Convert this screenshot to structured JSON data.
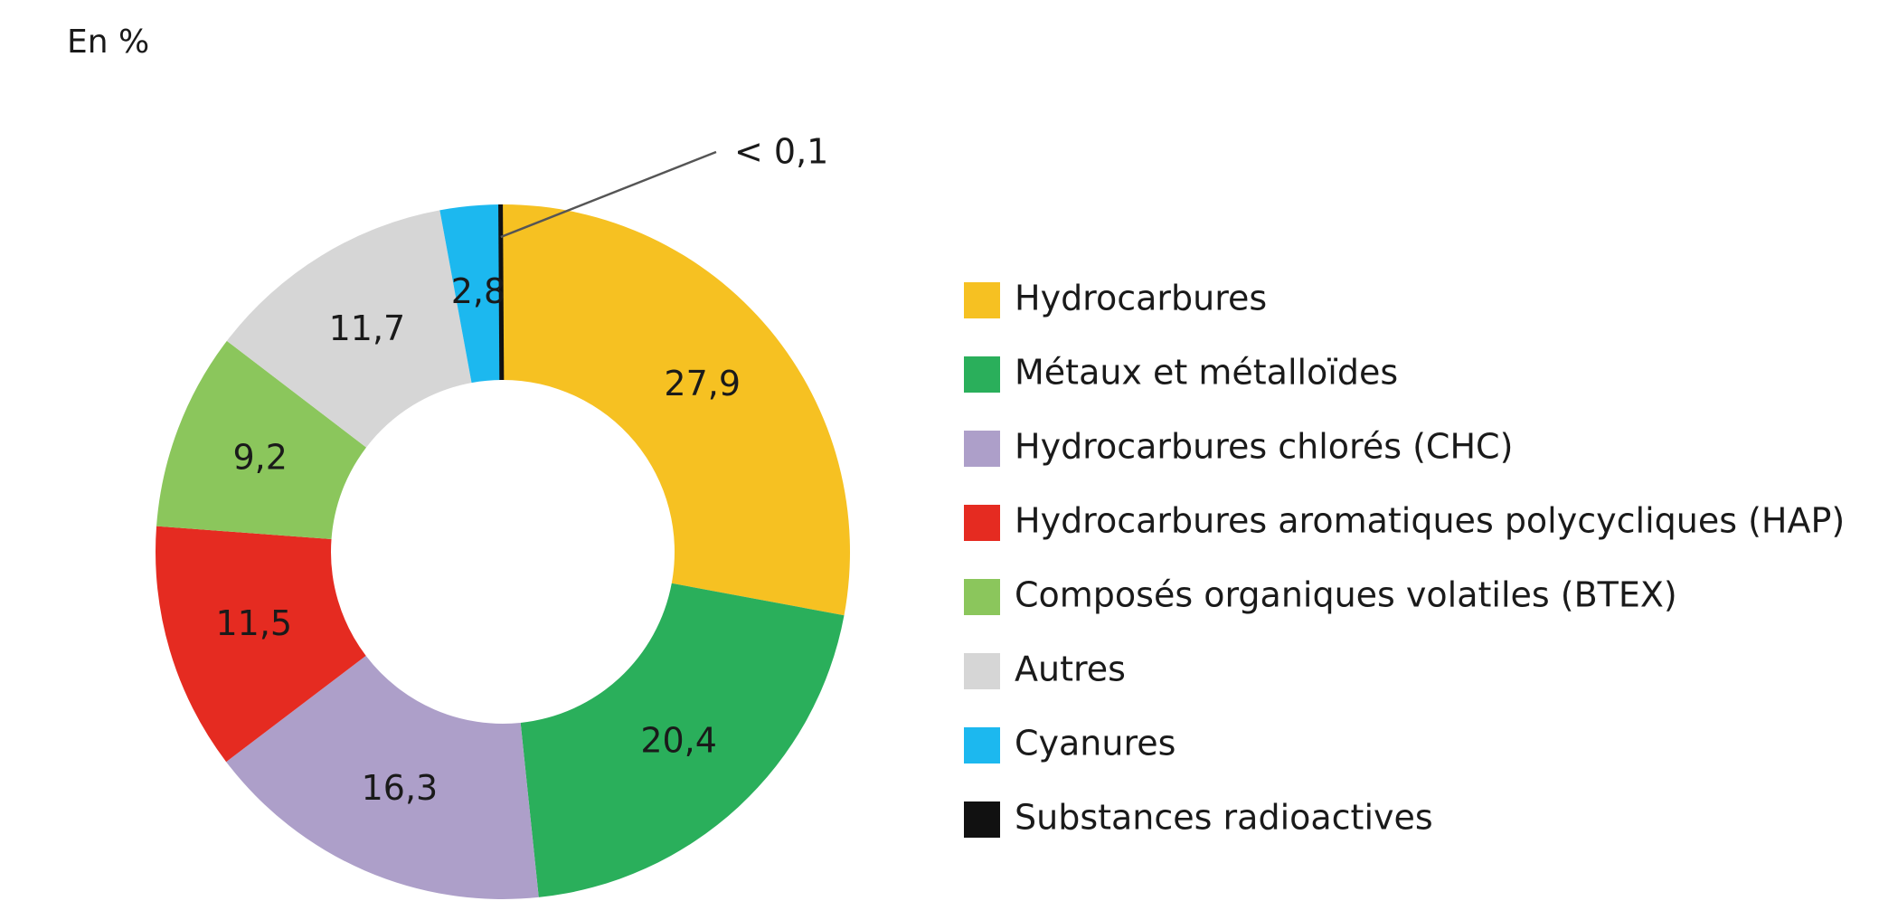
{
  "chart_data": {
    "type": "pie",
    "unit_label": "En %",
    "slices": [
      {
        "name": "Hydrocarbures",
        "value": 27.9,
        "label": "27,9",
        "color": "#f6c122"
      },
      {
        "name": "Métaux et métalloïdes",
        "value": 20.4,
        "label": "20,4",
        "color": "#2aaf5b"
      },
      {
        "name": "Hydrocarbures chlorés (CHC)",
        "value": 16.3,
        "label": "16,3",
        "color": "#ad9fc9"
      },
      {
        "name": "Hydrocarbures aromatiques polycycliques (HAP)",
        "value": 11.5,
        "label": "11,5",
        "color": "#e52b21"
      },
      {
        "name": "Composés organiques volatiles (BTEX)",
        "value": 9.2,
        "label": "9,2",
        "color": "#8bc65c"
      },
      {
        "name": "Autres",
        "value": 11.7,
        "label": "11,7",
        "color": "#d6d6d6"
      },
      {
        "name": "Cyanures",
        "value": 2.8,
        "label": "2,8",
        "color": "#1cb8ef"
      },
      {
        "name": "Substances radioactives",
        "value": 0.1,
        "label": "< 0,1",
        "color": "#111111"
      }
    ],
    "legend_position": "right"
  }
}
